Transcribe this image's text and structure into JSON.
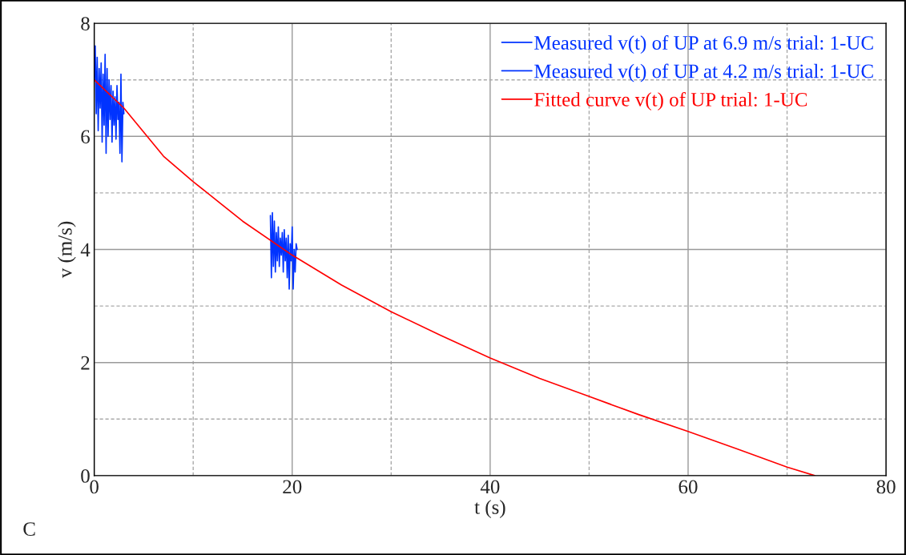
{
  "chart_data": {
    "type": "line",
    "xlabel": "t (s)",
    "ylabel": "v (m/s)",
    "xlim": [
      0,
      80
    ],
    "xticks": [
      0,
      {
        "value": 10,
        "label": null
      },
      20,
      {
        "value": 30,
        "label": null
      },
      40,
      {
        "value": 50,
        "label": null
      },
      60,
      {
        "value": 70,
        "label": null
      },
      80
    ],
    "ylim": [
      0,
      8
    ],
    "yticks": [
      0,
      {
        "value": 1,
        "label": null
      },
      2,
      {
        "value": 3,
        "label": null
      },
      4,
      {
        "value": 5,
        "label": null
      },
      6,
      {
        "value": 7,
        "label": null
      },
      8
    ],
    "grid": true,
    "legend": "top right",
    "annotations": [
      "C"
    ],
    "series": [
      {
        "name": "Measured v(t) of UP at 6.9 m/s trial: 1-UC",
        "color": "#0033ff",
        "x": [
          0,
          0.1,
          0.2,
          0.3,
          0.4,
          0.5,
          0.6,
          0.7,
          0.8,
          0.9,
          1.0,
          1.1,
          1.2,
          1.3,
          1.4,
          1.5,
          1.6,
          1.7,
          1.8,
          1.9,
          2.0,
          2.1,
          2.2,
          2.3,
          2.4,
          2.5,
          2.6,
          2.7,
          2.8,
          2.9,
          3.0
        ],
        "values": [
          7.0,
          7.6,
          6.4,
          7.4,
          6.1,
          7.2,
          6.5,
          7.3,
          5.9,
          7.1,
          6.2,
          7.45,
          5.7,
          7.2,
          6.0,
          7.0,
          6.3,
          6.9,
          5.9,
          6.8,
          6.2,
          6.7,
          5.95,
          6.9,
          6.3,
          6.6,
          5.7,
          7.1,
          5.55,
          6.6,
          6.4
        ]
      },
      {
        "name": "Measured v(t) of UP at 4.2 m/s trial: 1-UC",
        "color": "#0033ff",
        "x": [
          17.8,
          17.9,
          18.0,
          18.1,
          18.2,
          18.3,
          18.4,
          18.5,
          18.6,
          18.7,
          18.8,
          18.9,
          19.0,
          19.1,
          19.2,
          19.3,
          19.4,
          19.5,
          19.6,
          19.7,
          19.8,
          19.9,
          20.0,
          20.1,
          20.2,
          20.3,
          20.4,
          20.5
        ],
        "values": [
          4.6,
          3.5,
          4.65,
          3.7,
          4.5,
          3.6,
          4.3,
          3.8,
          4.4,
          3.7,
          4.2,
          3.9,
          4.3,
          3.6,
          4.35,
          3.8,
          4.2,
          3.5,
          4.25,
          3.3,
          4.1,
          3.8,
          4.4,
          3.3,
          4.0,
          3.6,
          4.1,
          4.0
        ]
      },
      {
        "name": "Fitted curve v(t) of UP trial: 1-UC",
        "color": "#ff0000",
        "x": [
          0,
          3,
          7,
          10,
          15,
          20,
          25,
          30,
          35,
          40,
          45,
          50,
          55,
          60,
          65,
          70,
          72.8
        ],
        "values": [
          7.0,
          6.5,
          5.65,
          5.2,
          4.5,
          3.9,
          3.37,
          2.9,
          2.48,
          2.08,
          1.72,
          1.4,
          1.08,
          0.78,
          0.47,
          0.15,
          0
        ]
      }
    ]
  }
}
